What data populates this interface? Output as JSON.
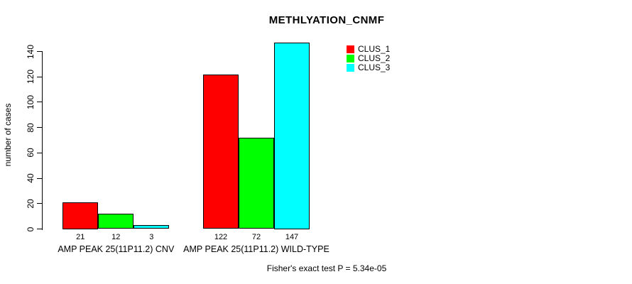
{
  "chart_data": {
    "type": "bar",
    "title": "METHLYATION_CNMF",
    "xlabel": "",
    "ylabel": "number of cases",
    "ylim": [
      0,
      140
    ],
    "yticks": [
      0,
      20,
      40,
      60,
      80,
      100,
      120,
      140
    ],
    "grid": false,
    "legend_position": "top-right",
    "bar_value_labels_shown": true,
    "categories": [
      "AMP PEAK 25(11P11.2) CNV",
      "AMP PEAK 25(11P11.2) WILD-TYPE"
    ],
    "series": [
      {
        "name": "CLUS_1",
        "color": "#ff0000",
        "values": [
          21,
          122
        ]
      },
      {
        "name": "CLUS_2",
        "color": "#00ff00",
        "values": [
          12,
          72
        ]
      },
      {
        "name": "CLUS_3",
        "color": "#00ffff",
        "values": [
          3,
          147
        ]
      }
    ],
    "annotation": "Fisher's exact test P = 5.34e-05"
  },
  "colors": {
    "background": "#ffffff",
    "axis": "#000000",
    "text": "#000000"
  }
}
